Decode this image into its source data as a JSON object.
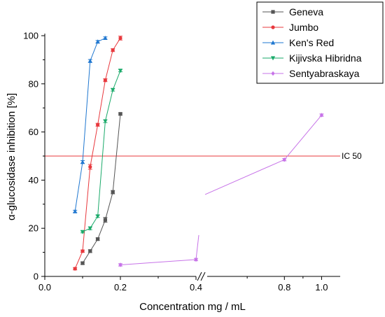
{
  "chart_data": {
    "type": "line",
    "xlabel": "Concentration mg / mL",
    "ylabel": "α-glucosidase inhibition [%]",
    "left_axis": {
      "xlim": [
        0.0,
        0.4
      ],
      "xticks": [
        "0.0",
        "0.2",
        "0.4"
      ],
      "minor_xticks": [
        0.1,
        0.3
      ]
    },
    "right_axis": {
      "xlim": [
        0.4,
        1.1
      ],
      "xticks": [
        "0.8",
        "1.0"
      ],
      "minor_xticks": [
        0.6,
        0.9
      ]
    },
    "ylim": [
      0,
      100
    ],
    "yticks": [
      "0",
      "20",
      "40",
      "60",
      "80",
      "100"
    ],
    "axis_break": {
      "at": 0.4,
      "segment": "left"
    },
    "grid": false,
    "legend_position": "top-right",
    "reference_line": {
      "y": 50,
      "label": "IC 50",
      "color": "#e8383d"
    },
    "series": [
      {
        "name": "Geneva",
        "color": "#555555",
        "segment": "left",
        "x": [
          0.1,
          0.12,
          0.14,
          0.16,
          0.18,
          0.2
        ],
        "y": [
          5.5,
          10.5,
          15.5,
          23.5,
          35,
          67.5
        ],
        "err": [
          0.5,
          0.6,
          0.5,
          1.0,
          0.7,
          0.4
        ]
      },
      {
        "name": "Jumbo",
        "color": "#e8383d",
        "segment": "left",
        "x": [
          0.08,
          0.1,
          0.12,
          0.14,
          0.16,
          0.18,
          0.2
        ],
        "y": [
          3.2,
          10.5,
          45.5,
          63,
          81.5,
          94,
          99
        ],
        "err": [
          0.5,
          0.5,
          1.0,
          0.6,
          0.6,
          0.6,
          0.8
        ]
      },
      {
        "name": "Ken's Red",
        "color": "#1f77d0",
        "segment": "left",
        "x": [
          0.08,
          0.1,
          0.12,
          0.14,
          0.16
        ],
        "y": [
          27,
          47.5,
          89.5,
          97.5,
          99
        ],
        "err": [
          0.5,
          0.6,
          0.6,
          0.5,
          0.5
        ]
      },
      {
        "name": "Kijivska Hibridna",
        "color": "#1aaa6a",
        "segment": "left",
        "x": [
          0.1,
          0.12,
          0.14,
          0.16,
          0.18,
          0.2
        ],
        "y": [
          18.5,
          20,
          25,
          64.5,
          77.5,
          85.5
        ],
        "err": [
          0.4,
          0.6,
          0.5,
          0.6,
          0.5,
          0.5
        ]
      },
      {
        "name": "Sentyabraskaya",
        "color": "#c773e8",
        "segment": "both",
        "x": [
          0.2,
          0.4,
          0.8,
          1.0
        ],
        "y": [
          4.8,
          7,
          48.5,
          67
        ],
        "err": [
          0.5,
          0.5,
          0.5,
          0.5
        ]
      }
    ]
  }
}
